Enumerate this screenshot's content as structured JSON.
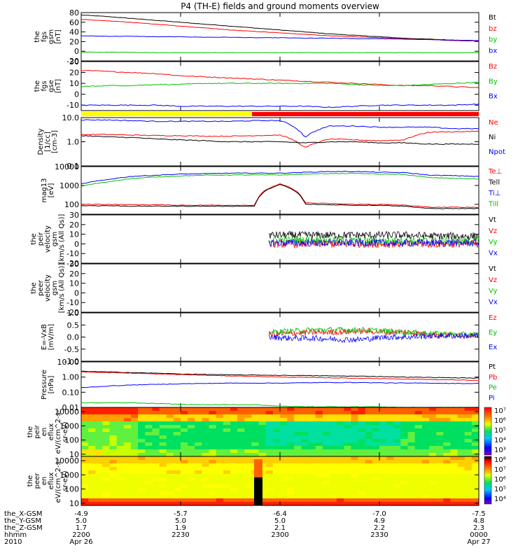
{
  "title": "P4 (TH-E) fields and ground moments overview",
  "colors": {
    "black": "#000000",
    "red": "#ff0000",
    "green": "#00c000",
    "blue": "#0000ff"
  },
  "chart_data": [
    {
      "type": "line",
      "id": "fgs_gsm",
      "ylabel": [
        "the",
        "fgs",
        "gsm",
        "[nT]"
      ],
      "ylim": [
        -20,
        80
      ],
      "ticks": [
        "80",
        "60",
        "40",
        "20",
        "0",
        "-20"
      ],
      "tick_values": [
        80,
        60,
        40,
        20,
        0,
        -20
      ],
      "series": [
        {
          "name": "Bt",
          "color": "black",
          "values": [
            75,
            72,
            68,
            64,
            60,
            56,
            52,
            48,
            44,
            40,
            36,
            33,
            30,
            27,
            25,
            23,
            22
          ]
        },
        {
          "name": "bz",
          "color": "red",
          "values": [
            66,
            63,
            60,
            56,
            52,
            48,
            44,
            41,
            38,
            35,
            32,
            30,
            28,
            26,
            24,
            22,
            21
          ]
        },
        {
          "name": "by",
          "color": "green",
          "values": [
            -2,
            -2,
            -2,
            -3,
            -3,
            -3,
            -3,
            -3,
            -3,
            -3,
            -3,
            -3,
            -3,
            -3,
            -3,
            -3,
            -3
          ]
        },
        {
          "name": "bx",
          "color": "blue",
          "values": [
            32,
            31,
            31,
            30,
            30,
            29,
            29,
            28,
            28,
            27,
            27,
            26,
            26,
            25,
            24,
            23,
            22
          ]
        }
      ]
    },
    {
      "type": "line",
      "id": "fgs_gse",
      "ylabel": [
        "the",
        "fgs",
        "gse",
        "[nT]"
      ],
      "ylim": [
        -15,
        30
      ],
      "ticks": [
        "30",
        "20",
        "10",
        "0",
        "-10"
      ],
      "tick_values": [
        30,
        20,
        10,
        0,
        -10
      ],
      "series": [
        {
          "name": "Bz",
          "color": "red",
          "values": [
            22,
            21,
            20,
            19,
            17,
            16,
            15,
            14,
            13,
            12,
            11,
            10,
            9,
            8,
            8,
            7,
            6
          ]
        },
        {
          "name": "By",
          "color": "green",
          "values": [
            7,
            8,
            8,
            9,
            9,
            10,
            10,
            10,
            10,
            10,
            10,
            9,
            8,
            8,
            9,
            10,
            11
          ]
        },
        {
          "name": "Bx",
          "color": "blue",
          "values": [
            -10,
            -10,
            -10,
            -10,
            -11,
            -11,
            -11,
            -11,
            -11,
            -11,
            -12,
            -11,
            -10,
            -10,
            -10,
            -10,
            -9
          ]
        }
      ]
    },
    {
      "type": "line",
      "id": "density",
      "ylabel": [
        "Density",
        "[1/cc]",
        "[cm-3]"
      ],
      "scale": "log",
      "ylim": [
        0.1,
        10
      ],
      "ticks": [
        "10.0",
        "1.0",
        "0.1"
      ],
      "tick_values": [
        10,
        1,
        0.1
      ],
      "series": [
        {
          "name": "Ne",
          "color": "red",
          "values": [
            2,
            2,
            1.9,
            1.8,
            1.8,
            1.7,
            1.7,
            1.8,
            1.9,
            0.55,
            1.3,
            1.2,
            1.1,
            1.2,
            2.5,
            2.6,
            2.7
          ]
        },
        {
          "name": "Ni",
          "color": "black",
          "values": [
            1.8,
            1.6,
            1.5,
            1.3,
            1.2,
            1.1,
            1.0,
            1.0,
            1.0,
            0.9,
            1.0,
            1.0,
            0.9,
            0.9,
            0.8,
            0.8,
            0.8
          ]
        },
        {
          "name": "Npot",
          "color": "blue",
          "values": [
            8,
            8,
            7.5,
            7,
            7,
            7,
            7,
            7.5,
            7.5,
            1.5,
            4.5,
            4.5,
            4,
            4,
            4,
            3.5,
            3.5
          ]
        }
      ]
    },
    {
      "type": "line",
      "id": "temperature",
      "ylabel": [
        "mag13",
        "[eV]"
      ],
      "scale": "log",
      "ylim": [
        30,
        10000
      ],
      "ticks": [
        "10000",
        "1000",
        "100"
      ],
      "tick_values": [
        10000,
        1000,
        100
      ],
      "series": [
        {
          "name": "Te⊥",
          "color": "red",
          "values": [
            100,
            100,
            95,
            95,
            90,
            90,
            90,
            90,
            1200,
            120,
            110,
            100,
            100,
            90,
            70,
            70,
            70
          ]
        },
        {
          "name": "Tell",
          "color": "black",
          "values": [
            85,
            85,
            80,
            80,
            80,
            80,
            80,
            80,
            1100,
            100,
            95,
            90,
            90,
            80,
            60,
            60,
            60
          ]
        },
        {
          "name": "Ti⊥",
          "color": "blue",
          "values": [
            1200,
            2000,
            3000,
            3500,
            4000,
            4200,
            4500,
            4500,
            4500,
            5000,
            5500,
            5500,
            5000,
            4800,
            3500,
            3300,
            3000
          ]
        },
        {
          "name": "Till",
          "color": "green",
          "values": [
            900,
            1500,
            2300,
            2800,
            3200,
            3500,
            3600,
            3600,
            3600,
            4000,
            4300,
            4400,
            4000,
            3800,
            2600,
            2400,
            2200
          ]
        }
      ]
    },
    {
      "type": "line",
      "id": "peir_velocity",
      "ylabel": [
        "the",
        "peir",
        "velocity",
        "gsm",
        "[km/s (All Qs)]"
      ],
      "ylim": [
        -20,
        30
      ],
      "ticks": [
        "30",
        "20",
        "10",
        "0",
        "-10",
        "-20"
      ],
      "tick_values": [
        30,
        20,
        10,
        0,
        -10,
        -20
      ],
      "series": [
        {
          "name": "Vt",
          "color": "black",
          "values": [
            9,
            9,
            9,
            9,
            9,
            9,
            9,
            8,
            8,
            8
          ]
        },
        {
          "name": "Vz",
          "color": "red",
          "values": [
            0,
            0,
            0,
            0,
            0,
            0,
            0,
            0,
            0,
            0
          ]
        },
        {
          "name": "Vy",
          "color": "green",
          "values": [
            4,
            4,
            4,
            3,
            3,
            3,
            3,
            3,
            3,
            3
          ]
        },
        {
          "name": "Vx",
          "color": "blue",
          "values": [
            1,
            1,
            1,
            1,
            1,
            1,
            1,
            1,
            1,
            1
          ]
        }
      ]
    },
    {
      "type": "line",
      "id": "peer_velocity",
      "ylabel": [
        "the",
        "peer",
        "velocity",
        "gsm",
        "[km/s (All Qs)]"
      ],
      "ylim": [
        -20,
        30
      ],
      "ticks": [
        "30",
        "20",
        "10",
        "0",
        "-10",
        "-20"
      ],
      "tick_values": [
        30,
        20,
        10,
        0,
        -10,
        -20
      ],
      "series": [
        {
          "name": "Vt",
          "color": "black",
          "values": []
        },
        {
          "name": "Vz",
          "color": "red",
          "values": []
        },
        {
          "name": "Vy",
          "color": "green",
          "values": []
        },
        {
          "name": "Vx",
          "color": "blue",
          "values": []
        }
      ]
    },
    {
      "type": "line",
      "id": "efield",
      "ylabel": [
        "E=-VxB",
        "[mV/m]"
      ],
      "ylim": [
        -1,
        1
      ],
      "ticks": [
        "1.0",
        "0.5",
        "0.0",
        "-0.5",
        "-1.0"
      ],
      "tick_values": [
        1,
        0.5,
        0,
        -0.5,
        -1
      ],
      "series": [
        {
          "name": "Ez",
          "color": "red",
          "values": [
            0.1,
            0.15,
            0.2,
            0.2,
            0.25,
            0.2,
            0.2,
            0.1,
            0.1,
            0.05
          ]
        },
        {
          "name": "Ey",
          "color": "green",
          "values": [
            0.2,
            0.25,
            0.3,
            0.3,
            0.3,
            0.25,
            0.2,
            0.15,
            0.1,
            0.1
          ]
        },
        {
          "name": "Ex",
          "color": "blue",
          "values": [
            0.0,
            -0.05,
            -0.05,
            -0.1,
            -0.1,
            0.0,
            0.0,
            0.05,
            0.05,
            0.05
          ]
        }
      ]
    },
    {
      "type": "line",
      "id": "pressure",
      "ylabel": [
        "Pressure",
        "[nPa]"
      ],
      "scale": "log",
      "ylim": [
        0.01,
        10
      ],
      "ticks": [
        "10.00",
        "1.00",
        "0.10",
        "0.01"
      ],
      "tick_values": [
        10,
        1,
        0.1,
        0.01
      ],
      "series": [
        {
          "name": "Pt",
          "color": "black",
          "values": [
            2.4,
            2.2,
            2.0,
            1.8,
            1.6,
            1.5,
            1.4,
            1.35,
            1.3,
            1.25,
            1.2,
            1.15,
            1.1,
            1.0,
            0.95,
            0.9,
            0.85
          ]
        },
        {
          "name": "Pb",
          "color": "red",
          "values": [
            2.2,
            2.0,
            1.8,
            1.6,
            1.45,
            1.3,
            1.2,
            1.1,
            1.0,
            0.95,
            0.9,
            0.85,
            0.8,
            0.75,
            0.7,
            0.65,
            0.6
          ]
        },
        {
          "name": "Pe",
          "color": "green",
          "values": [
            0.02,
            0.02,
            0.02,
            0.018,
            0.016,
            0.015,
            0.015,
            0.015,
            0.012,
            0.011,
            0.011,
            0.011,
            0.011,
            0.01,
            0.01,
            0.01,
            0.01
          ]
        },
        {
          "name": "Pi",
          "color": "blue",
          "values": [
            0.2,
            0.25,
            0.3,
            0.33,
            0.36,
            0.38,
            0.4,
            0.4,
            0.4,
            0.42,
            0.44,
            0.44,
            0.42,
            0.4,
            0.4,
            0.38,
            0.38
          ]
        }
      ]
    },
    {
      "type": "heatmap",
      "id": "peir_eflux",
      "ylabel": [
        "the",
        "peir",
        "en",
        "eflux",
        "eV/(cm^2-s-",
        "sr-eV)"
      ],
      "scale": "log",
      "ylim": [
        7,
        20000
      ],
      "ticks": [
        "10000",
        "1000",
        "100",
        "10"
      ],
      "tick_values": [
        10000,
        1000,
        100,
        10
      ],
      "colorbar_ticks": [
        "10⁷",
        "10⁶",
        "10⁵",
        "10⁴",
        "10³"
      ]
    },
    {
      "type": "heatmap",
      "id": "peer_eflux",
      "ylabel": [
        "the",
        "peer",
        "en",
        "eflux",
        "eV/(cm^2-s-",
        "sr-eV)"
      ],
      "scale": "log",
      "ylim": [
        7,
        20000
      ],
      "ticks": [
        "10000",
        "1000",
        "100",
        "10"
      ],
      "tick_values": [
        10000,
        1000,
        100,
        10
      ],
      "colorbar_ticks": [
        "10⁸",
        "10⁷",
        "10⁶",
        "10⁵",
        "10⁴"
      ]
    }
  ],
  "colorbar_peir": [
    "10⁷",
    "10⁶",
    "10⁵",
    "10⁴",
    "10³"
  ],
  "colorbar_peer": [
    "10⁸",
    "10⁷",
    "10⁶",
    "10⁵",
    "10⁴"
  ],
  "x_axis": {
    "row_labels": [
      "the_X-GSM",
      "the_Y-GSM",
      "the_Z-GSM",
      "hhmm",
      "2010"
    ],
    "columns": [
      [
        "-4.9",
        "5.0",
        "1.7",
        "2200",
        "Apr 26"
      ],
      [
        "-5.7",
        "5.0",
        "1.9",
        "2230",
        ""
      ],
      [
        "-6.4",
        "5.0",
        "2.1",
        "2300",
        ""
      ],
      [
        "-7.0",
        "4.9",
        "2.2",
        "2330",
        ""
      ],
      [
        "-7.5",
        "4.8",
        "2.3",
        "0000",
        "Apr 27"
      ]
    ]
  }
}
